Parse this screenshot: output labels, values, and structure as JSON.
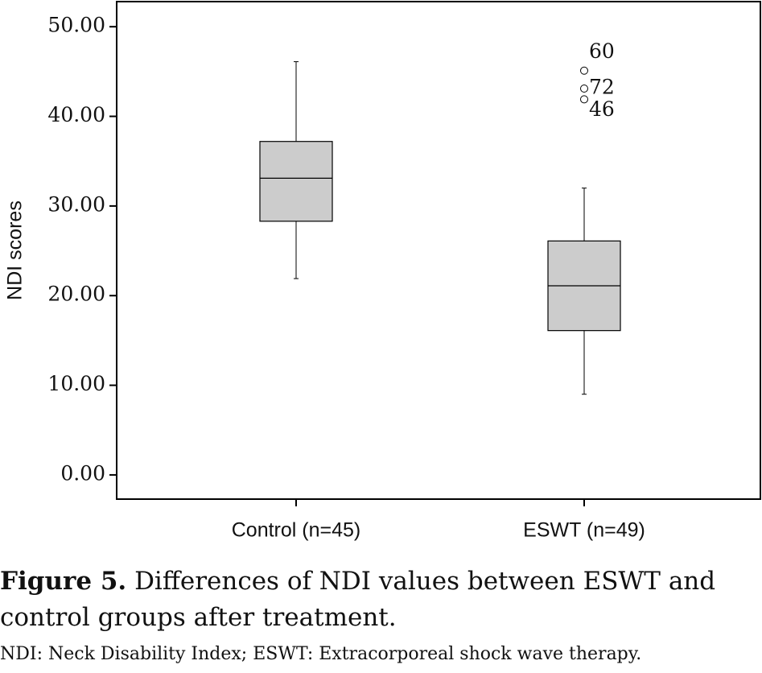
{
  "chart_data": {
    "type": "box",
    "ylabel": "NDI scores",
    "categories": [
      "Control (n=45)",
      "ESWT (n=49)"
    ],
    "boxes": [
      {
        "whislo": 21.9,
        "q1": 28.3,
        "med": 33.1,
        "q3": 37.2,
        "whishi": 46.1,
        "outliers": []
      },
      {
        "whislo": 9.0,
        "q1": 16.1,
        "med": 21.1,
        "q3": 26.1,
        "whishi": 32.0,
        "outliers": [
          {
            "value": 45.1,
            "label": "60"
          },
          {
            "value": 43.1,
            "label": "72"
          },
          {
            "value": 41.9,
            "label": "46"
          }
        ]
      }
    ],
    "color": "#cccccc",
    "ylim": [
      -2.7,
      52.8
    ],
    "yticks": [
      {
        "value": 0,
        "label": "0.00"
      },
      {
        "value": 10,
        "label": "10.00"
      },
      {
        "value": 20,
        "label": "20.00"
      },
      {
        "value": 30,
        "label": "30.00"
      },
      {
        "value": 40,
        "label": "40.00"
      },
      {
        "value": 50,
        "label": "50.00"
      }
    ]
  },
  "caption": {
    "label": "Figure 5.",
    "text": "Differences of NDI values between ESWT and control groups after treatment.",
    "note": "NDI: Neck Disability Index; ESWT: Extracorporeal shock wave therapy."
  }
}
